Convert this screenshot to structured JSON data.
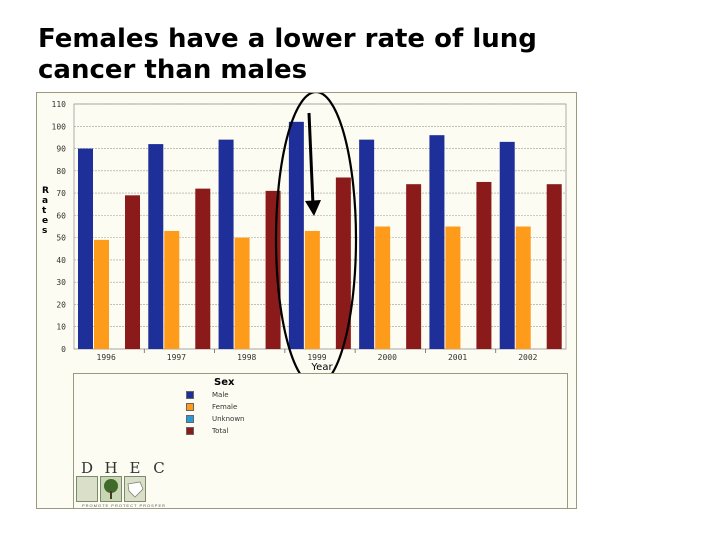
{
  "slide": {
    "title": "Females have a lower rate of lung cancer than males"
  },
  "chart_data": {
    "type": "bar",
    "categories": [
      "1996",
      "1997",
      "1998",
      "1999",
      "2000",
      "2001",
      "2002"
    ],
    "series": [
      {
        "name": "Male",
        "color": "#1f2f9a",
        "values": [
          90,
          92,
          94,
          102,
          94,
          96,
          93
        ]
      },
      {
        "name": "Female",
        "color": "#ff9b1a",
        "values": [
          49,
          53,
          50,
          53,
          55,
          55,
          55
        ]
      },
      {
        "name": "Total",
        "color": "#8b1a1a",
        "values": [
          69,
          72,
          71,
          77,
          74,
          75,
          74
        ]
      }
    ],
    "xlabel": "Year",
    "ylabel": "Rates",
    "ylim": [
      0,
      110
    ],
    "yticks": [
      "0",
      "10",
      "20",
      "30",
      "40",
      "50",
      "60",
      "70",
      "80",
      "90",
      "100",
      "110"
    ],
    "grid": true,
    "annotation": "ellipse and arrow highlighting 1999 female rate"
  },
  "legend": {
    "title": "Sex",
    "items": [
      {
        "label": "Male",
        "color": "#1f2f9a"
      },
      {
        "label": "Female",
        "color": "#ff9b1a"
      },
      {
        "label": "Unknown",
        "color": "#2a9ad8"
      },
      {
        "label": "Total",
        "color": "#8b1a1a"
      }
    ]
  },
  "logo": {
    "letters": [
      "D",
      "H",
      "E",
      "C"
    ],
    "tagline": "PROMOTE PROTECT PROSPER"
  }
}
